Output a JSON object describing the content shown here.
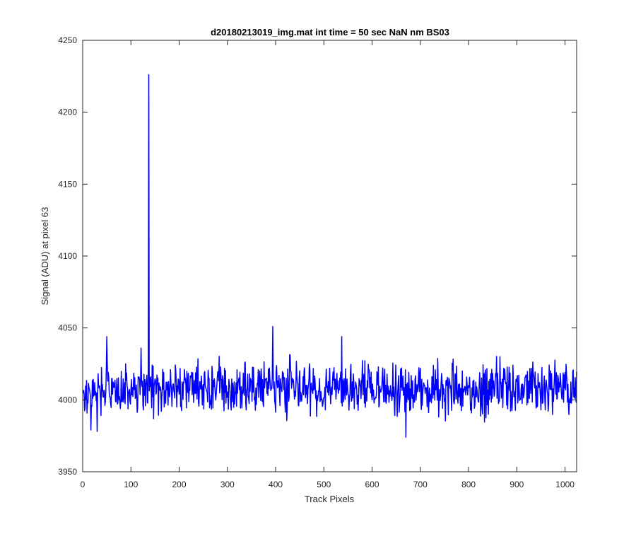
{
  "chart_data": {
    "type": "line",
    "title": "d20180213019_img.mat int time = 50 sec  NaN nm BS03",
    "xlabel": "Track Pixels",
    "ylabel": "Signal (ADU) at pixel 63",
    "xlim": [
      0,
      1024
    ],
    "ylim": [
      3950,
      4250
    ],
    "x_ticks": [
      0,
      100,
      200,
      300,
      400,
      500,
      600,
      700,
      800,
      900,
      1000
    ],
    "y_ticks": [
      3950,
      4000,
      4050,
      4100,
      4150,
      4200,
      4250
    ],
    "x_tick_labels": [
      "0",
      "100",
      "200",
      "300",
      "400",
      "500",
      "600",
      "700",
      "800",
      "900",
      "1000"
    ],
    "y_tick_labels": [
      "3950",
      "4000",
      "4050",
      "4100",
      "4150",
      "4200",
      "4250"
    ],
    "grid": false,
    "legend": "none",
    "series": [
      {
        "color": "#0000ff",
        "baseline": 4008,
        "noise_amplitude": 9,
        "n_points": 1024,
        "spikes": [
          {
            "x": 49,
            "y": 4044
          },
          {
            "x": 120,
            "y": 4036
          },
          {
            "x": 136,
            "y": 4226
          },
          {
            "x": 393,
            "y": 4051
          },
          {
            "x": 536,
            "y": 4044
          },
          {
            "x": 669,
            "y": 3974
          },
          {
            "x": 16,
            "y": 3979
          },
          {
            "x": 29,
            "y": 3978
          }
        ]
      }
    ]
  }
}
